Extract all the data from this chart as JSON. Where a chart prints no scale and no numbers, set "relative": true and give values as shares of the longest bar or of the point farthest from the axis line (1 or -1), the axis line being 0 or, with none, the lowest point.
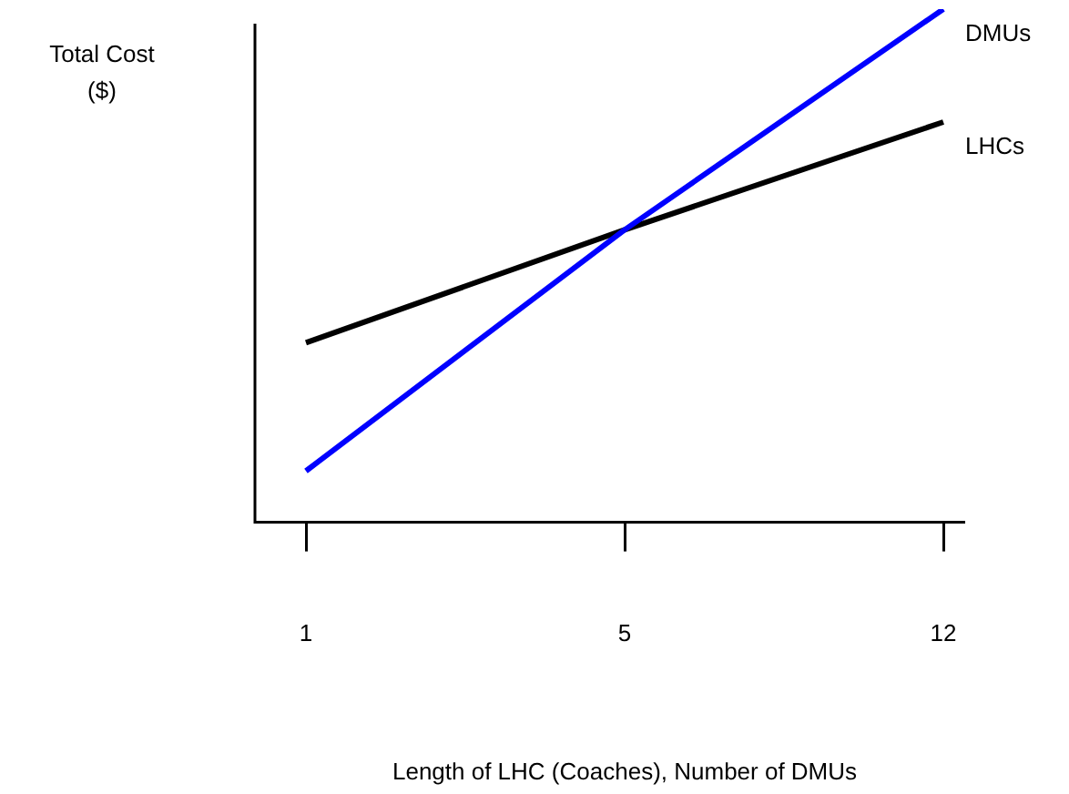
{
  "chart_data": {
    "type": "line",
    "relative": true,
    "ylabel": "Total Cost ($)",
    "xlabel": "Length of LHC (Coaches), Number of DMUs",
    "categories": [
      "1",
      "5",
      "12"
    ],
    "series": [
      {
        "name": "DMUs",
        "color": "#0000ff",
        "values": [
          0.1,
          0.57,
          1
        ]
      },
      {
        "name": "LHCs",
        "color": "#000000",
        "values": [
          0.35,
          0.57,
          0.78
        ]
      }
    ],
    "legend": false,
    "grid": false,
    "marker": "none",
    "line_style": "solid"
  }
}
